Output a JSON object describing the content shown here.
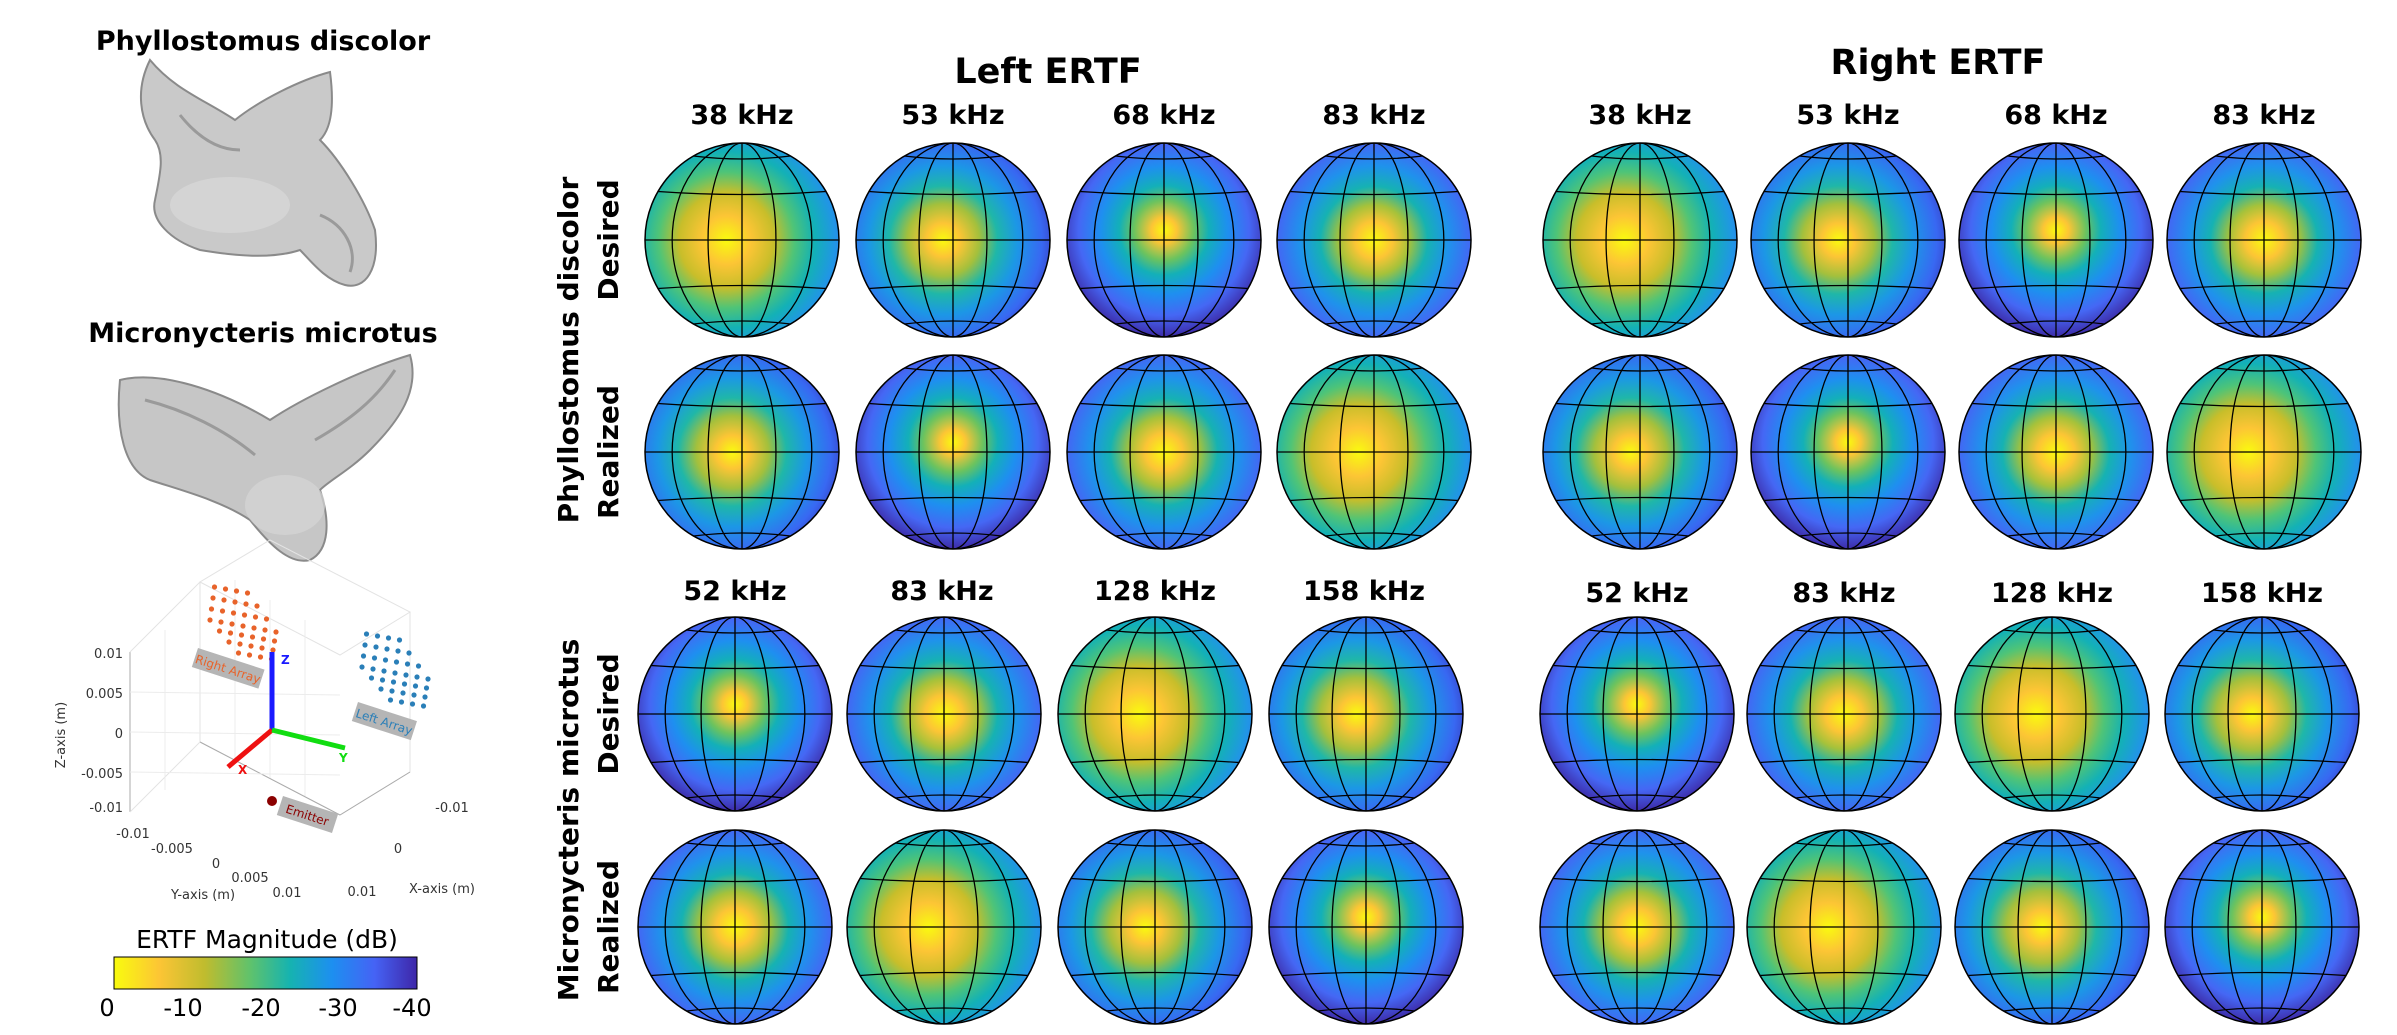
{
  "species_panel": {
    "species1_name": "Phyllostomus discolor",
    "species2_name": "Micronycteris microtus"
  },
  "geometry_plot": {
    "z_axis_label": "Z-axis (m)",
    "y_axis_label": "Y-axis (m)",
    "x_axis_label": "X-axis (m)",
    "z_ticks": [
      "0.01",
      "0.005",
      "0",
      "-0.005",
      "-0.01"
    ],
    "y_ticks": [
      "-0.01",
      "-0.005",
      "0",
      "0.005",
      "0.01"
    ],
    "x_ticks": [
      "-0.01",
      "0",
      "0.01"
    ],
    "right_array_label": "Right Array",
    "left_array_label": "Left Array",
    "emitter_label": "Emitter",
    "axis_x_letter": "X",
    "axis_y_letter": "Y",
    "axis_z_letter": "Z",
    "color_right_array": "#e8632a",
    "color_left_array": "#2a7fb8",
    "color_emitter": "#8b0000"
  },
  "colorbar": {
    "title": "ERTF Magnitude (dB)",
    "ticks": [
      "0",
      "-10",
      "-20",
      "-30",
      "-40"
    ],
    "range_db": [
      -40,
      0
    ]
  },
  "grid": {
    "left_title": "Left ERTF",
    "right_title": "Right ERTF",
    "species_row_labels": [
      "Phyllostomus discolor",
      "Micronycteris microtus"
    ],
    "condition_labels": [
      "Desired",
      "Realized"
    ],
    "freqs_species1": [
      "38 kHz",
      "53 kHz",
      "68 kHz",
      "83 kHz"
    ],
    "freqs_species2": [
      "52 kHz",
      "83 kHz",
      "128 kHz",
      "158 kHz"
    ]
  },
  "chart_data": {
    "type": "heatmap",
    "description_units": "dB",
    "colormap_range": [
      -40,
      0
    ],
    "panels": [
      {
        "species": "Phyllostomus discolor",
        "ear": "Left",
        "condition": "Desired",
        "frequencies_khz": [
          38,
          53,
          68,
          83
        ]
      },
      {
        "species": "Phyllostomus discolor",
        "ear": "Left",
        "condition": "Realized",
        "frequencies_khz": [
          38,
          53,
          68,
          83
        ]
      },
      {
        "species": "Phyllostomus discolor",
        "ear": "Right",
        "condition": "Desired",
        "frequencies_khz": [
          38,
          53,
          68,
          83
        ]
      },
      {
        "species": "Phyllostomus discolor",
        "ear": "Right",
        "condition": "Realized",
        "frequencies_khz": [
          38,
          53,
          68,
          83
        ]
      },
      {
        "species": "Micronycteris microtus",
        "ear": "Left",
        "condition": "Desired",
        "frequencies_khz": [
          52,
          83,
          128,
          158
        ]
      },
      {
        "species": "Micronycteris microtus",
        "ear": "Left",
        "condition": "Realized",
        "frequencies_khz": [
          52,
          83,
          128,
          158
        ]
      },
      {
        "species": "Micronycteris microtus",
        "ear": "Right",
        "condition": "Desired",
        "frequencies_khz": [
          52,
          83,
          128,
          158
        ]
      },
      {
        "species": "Micronycteris microtus",
        "ear": "Right",
        "condition": "Realized",
        "frequencies_khz": [
          52,
          83,
          128,
          158
        ]
      }
    ]
  }
}
